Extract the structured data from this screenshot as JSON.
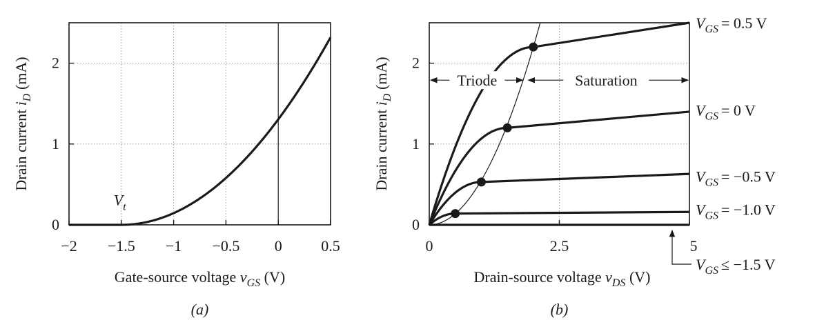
{
  "colors": {
    "ink": "#1a1a1a",
    "grid": "#9a9a9a",
    "background": "#ffffff"
  },
  "chart_data": [
    {
      "type": "line",
      "panel_label": "(a)",
      "xlabel": {
        "text": "Gate-source voltage ",
        "var": "v",
        "sub": "GS",
        "unit": " (V)"
      },
      "ylabel": {
        "text": "Drain current ",
        "var": "i",
        "sub": "D",
        "unit": " (mA)"
      },
      "xlim": [
        -2,
        0.5
      ],
      "ylim": [
        0,
        2.5
      ],
      "x_ticks": [
        -2,
        -1.5,
        -1,
        -0.5,
        0,
        0.5
      ],
      "x_tick_labels": [
        "−2",
        "−1.5",
        "−1",
        "−0.5",
        "0",
        "0.5"
      ],
      "y_ticks": [
        0,
        1,
        2
      ],
      "y_tick_labels": [
        "0",
        "1",
        "2"
      ],
      "grid": true,
      "annotation": {
        "var": "V",
        "sub": "t",
        "x": -1.5,
        "y": 0.25
      },
      "threshold_voltage": -1.5,
      "series": [
        {
          "x": [
            -2,
            -1.5,
            -1.25,
            -1,
            -0.75,
            -0.5,
            -0.25,
            0,
            0.25,
            0.5
          ],
          "y": [
            0,
            0,
            0.05,
            0.16,
            0.34,
            0.57,
            0.88,
            1.25,
            1.73,
            2.32
          ]
        }
      ]
    },
    {
      "type": "line",
      "panel_label": "(b)",
      "xlabel": {
        "text": "Drain-source voltage ",
        "var": "v",
        "sub": "DS",
        "unit": " (V)"
      },
      "ylabel": {
        "text": "Drain current ",
        "var": "i",
        "sub": "D",
        "unit": " (mA)"
      },
      "xlim": [
        0,
        5
      ],
      "ylim": [
        0,
        2.5
      ],
      "x_ticks": [
        0,
        2.5,
        5
      ],
      "x_tick_labels": [
        "0",
        "2.5",
        "5"
      ],
      "y_ticks": [
        0,
        1,
        2
      ],
      "y_tick_labels": [
        "0",
        "1",
        "2"
      ],
      "grid": true,
      "region_labels": {
        "triode": "Triode",
        "saturation": "Saturation"
      },
      "series": [
        {
          "name_var": "V",
          "name_sub": "GS",
          "name_value": "= 0.5 V",
          "vgs": 0.5,
          "sat_point": [
            2.0,
            2.2
          ],
          "end_value": 2.5
        },
        {
          "name_var": "V",
          "name_sub": "GS",
          "name_value": "= 0 V",
          "vgs": 0,
          "sat_point": [
            1.5,
            1.2
          ],
          "end_value": 1.4
        },
        {
          "name_var": "V",
          "name_sub": "GS",
          "name_value": "= −0.5 V",
          "vgs": -0.5,
          "sat_point": [
            1.0,
            0.53
          ],
          "end_value": 0.63
        },
        {
          "name_var": "V",
          "name_sub": "GS",
          "name_value": "= −1.0 V",
          "vgs": -1.0,
          "sat_point": [
            0.5,
            0.14
          ],
          "end_value": 0.16
        },
        {
          "name_var": "V",
          "name_sub": "GS",
          "name_value": "≤ −1.5 V",
          "vgs": -1.5,
          "sat_point": null,
          "end_value": 0
        }
      ],
      "boundary_curve": {
        "x": [
          0,
          0.5,
          1.0,
          1.5,
          2.0,
          2.2
        ],
        "y": [
          0,
          0.14,
          0.53,
          1.2,
          2.2,
          2.5
        ]
      },
      "saturation_points": [
        [
          0.5,
          0.14
        ],
        [
          1.0,
          0.53
        ],
        [
          1.5,
          1.2
        ],
        [
          2.0,
          2.2
        ]
      ]
    }
  ]
}
